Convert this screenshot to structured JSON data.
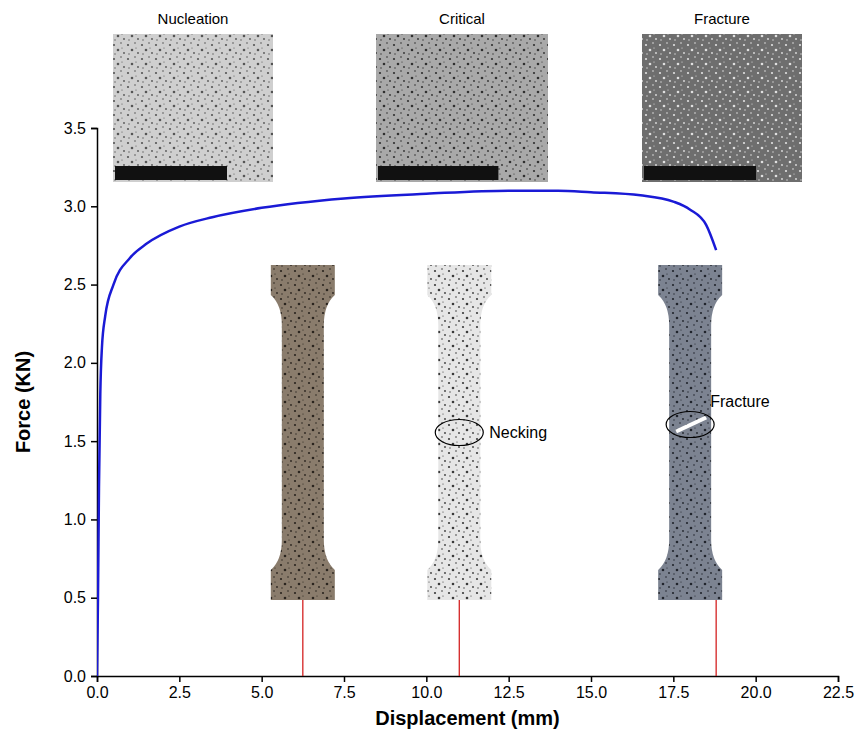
{
  "chart_data": {
    "type": "line",
    "x_label": "Displacement (mm)",
    "y_label": "Force (KN)",
    "x": [
      0,
      0.03,
      0.06,
      0.1,
      0.15,
      0.25,
      0.5,
      1.0,
      1.5,
      2.5,
      3.5,
      5.0,
      7.5,
      10.0,
      12.5,
      14.0,
      15.0,
      16.5,
      17.5,
      18.0,
      18.5,
      18.8
    ],
    "values": [
      0,
      0.5,
      1.2,
      1.8,
      2.1,
      2.3,
      2.5,
      2.67,
      2.76,
      2.87,
      2.93,
      2.99,
      3.05,
      3.08,
      3.1,
      3.1,
      3.09,
      3.07,
      3.03,
      2.98,
      2.88,
      2.72
    ],
    "color": "#1a1ad6",
    "xlim": [
      0,
      22.5
    ],
    "xticks": [
      {
        "value": 0,
        "label": "0.0"
      },
      {
        "value": 2.5,
        "label": "2.5"
      },
      {
        "value": 5,
        "label": "5.0"
      },
      {
        "value": 7.5,
        "label": "7.5"
      },
      {
        "value": 10,
        "label": "10.0"
      },
      {
        "value": 12.5,
        "label": "12.5"
      },
      {
        "value": 15,
        "label": "15.0"
      },
      {
        "value": 17.5,
        "label": "17.5"
      },
      {
        "value": 20,
        "label": "20.0"
      },
      {
        "value": 22.5,
        "label": "22.5"
      }
    ],
    "ylim": [
      0,
      3.5
    ],
    "yticks": [
      {
        "value": 0,
        "label": "0.0"
      },
      {
        "value": 0.5,
        "label": "0.5"
      },
      {
        "value": 1,
        "label": "1.0"
      },
      {
        "value": 1.5,
        "label": "1.5"
      },
      {
        "value": 2,
        "label": "2.0"
      },
      {
        "value": 2.5,
        "label": "2.5"
      },
      {
        "value": 3,
        "label": "3.0"
      },
      {
        "value": 3.5,
        "label": "3.5"
      }
    ],
    "grid": false,
    "stages": [
      {
        "label": "Nucleation",
        "x": 6.25
      },
      {
        "label": "Critical",
        "x": 11.0,
        "annotation": "Necking"
      },
      {
        "label": "Fracture",
        "x": 18.8,
        "annotation": "Fracture"
      }
    ]
  }
}
